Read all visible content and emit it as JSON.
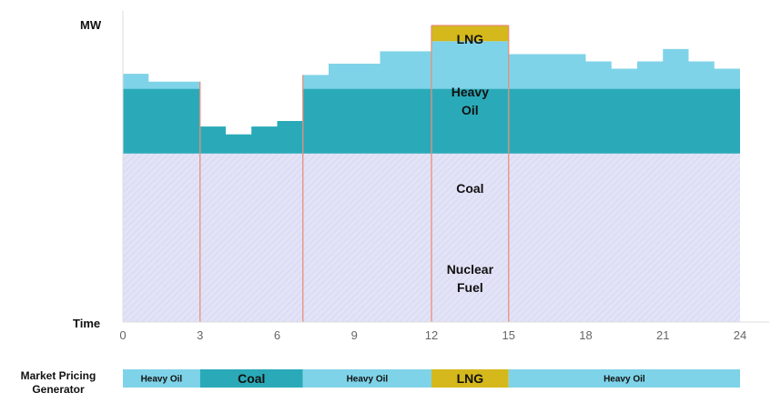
{
  "chart_data": {
    "type": "area",
    "ylabel": "MW",
    "xlabel": "Time",
    "xlim": [
      0,
      24
    ],
    "x_ticks": [
      "0",
      "3",
      "6",
      "9",
      "12",
      "15",
      "18",
      "21",
      "24"
    ],
    "grid": false,
    "colors": {
      "nuclear": "#e3e3f7",
      "coal": "#2aaab8",
      "heavy_oil": "#7fd3e8",
      "lng": "#d4b81c",
      "divider": "#e8907a",
      "axis": "#dddddd"
    },
    "layers": [
      {
        "name": "Nuclear Fuel",
        "label_lines": [
          "Nuclear",
          "Fuel"
        ],
        "top": [
          {
            "x": 0,
            "y": 30
          },
          {
            "x": 24,
            "y": 30
          }
        ]
      },
      {
        "name": "Coal",
        "label_lines": [
          "Coal"
        ],
        "top": [
          {
            "x": 0,
            "y": 41.5
          },
          {
            "x": 3,
            "y": 41.5
          },
          {
            "x": 3,
            "y": 34.8
          },
          {
            "x": 4,
            "y": 34.8
          },
          {
            "x": 4,
            "y": 33.4
          },
          {
            "x": 5,
            "y": 33.4
          },
          {
            "x": 5,
            "y": 34.8
          },
          {
            "x": 6,
            "y": 34.8
          },
          {
            "x": 6,
            "y": 35.8
          },
          {
            "x": 7,
            "y": 35.8
          },
          {
            "x": 7,
            "y": 41.5
          },
          {
            "x": 24,
            "y": 41.5
          }
        ]
      },
      {
        "name": "Heavy Oil",
        "label_lines": [
          "Heavy",
          "Oil"
        ],
        "top": [
          {
            "x": 0,
            "y": 44.2
          },
          {
            "x": 1,
            "y": 44.2
          },
          {
            "x": 1,
            "y": 42.8
          },
          {
            "x": 3,
            "y": 42.8
          },
          {
            "x": 3,
            "y": 34.8
          },
          {
            "x": 4,
            "y": 34.8
          },
          {
            "x": 4,
            "y": 33.4
          },
          {
            "x": 5,
            "y": 33.4
          },
          {
            "x": 5,
            "y": 34.8
          },
          {
            "x": 6,
            "y": 34.8
          },
          {
            "x": 6,
            "y": 35.8
          },
          {
            "x": 7,
            "y": 35.8
          },
          {
            "x": 7,
            "y": 44
          },
          {
            "x": 8,
            "y": 44
          },
          {
            "x": 8,
            "y": 46
          },
          {
            "x": 10,
            "y": 46
          },
          {
            "x": 10,
            "y": 48.2
          },
          {
            "x": 12,
            "y": 48.2
          },
          {
            "x": 12,
            "y": 50
          },
          {
            "x": 15,
            "y": 50
          },
          {
            "x": 15,
            "y": 47.7
          },
          {
            "x": 18,
            "y": 47.7
          },
          {
            "x": 18,
            "y": 46.4
          },
          {
            "x": 19,
            "y": 46.4
          },
          {
            "x": 19,
            "y": 45.1
          },
          {
            "x": 20,
            "y": 45.1
          },
          {
            "x": 20,
            "y": 46.4
          },
          {
            "x": 21,
            "y": 46.4
          },
          {
            "x": 21,
            "y": 48.6
          },
          {
            "x": 22,
            "y": 48.6
          },
          {
            "x": 22,
            "y": 46.4
          },
          {
            "x": 23,
            "y": 46.4
          },
          {
            "x": 23,
            "y": 45.1
          },
          {
            "x": 24,
            "y": 45.1
          }
        ]
      },
      {
        "name": "LNG",
        "label_lines": [
          "LNG"
        ],
        "x_range": [
          12,
          15
        ],
        "bottom": 50,
        "top": 52.8
      }
    ],
    "dividers": [
      3,
      7,
      12,
      15
    ],
    "market_pricing": {
      "label_lines": [
        "Market Pricing",
        "Generator"
      ],
      "segments": [
        {
          "label": "Heavy Oil",
          "from": 0,
          "to": 3,
          "color": "#7fd3e8",
          "size": "small"
        },
        {
          "label": "Coal",
          "from": 3,
          "to": 7,
          "color": "#2aaab8",
          "size": "large"
        },
        {
          "label": "Heavy Oil",
          "from": 7,
          "to": 12,
          "color": "#7fd3e8",
          "size": "small"
        },
        {
          "label": "LNG",
          "from": 12,
          "to": 15,
          "color": "#d4b81c",
          "size": "large"
        },
        {
          "label": "Heavy Oil",
          "from": 15,
          "to": 24,
          "color": "#7fd3e8",
          "size": "small"
        }
      ]
    }
  }
}
